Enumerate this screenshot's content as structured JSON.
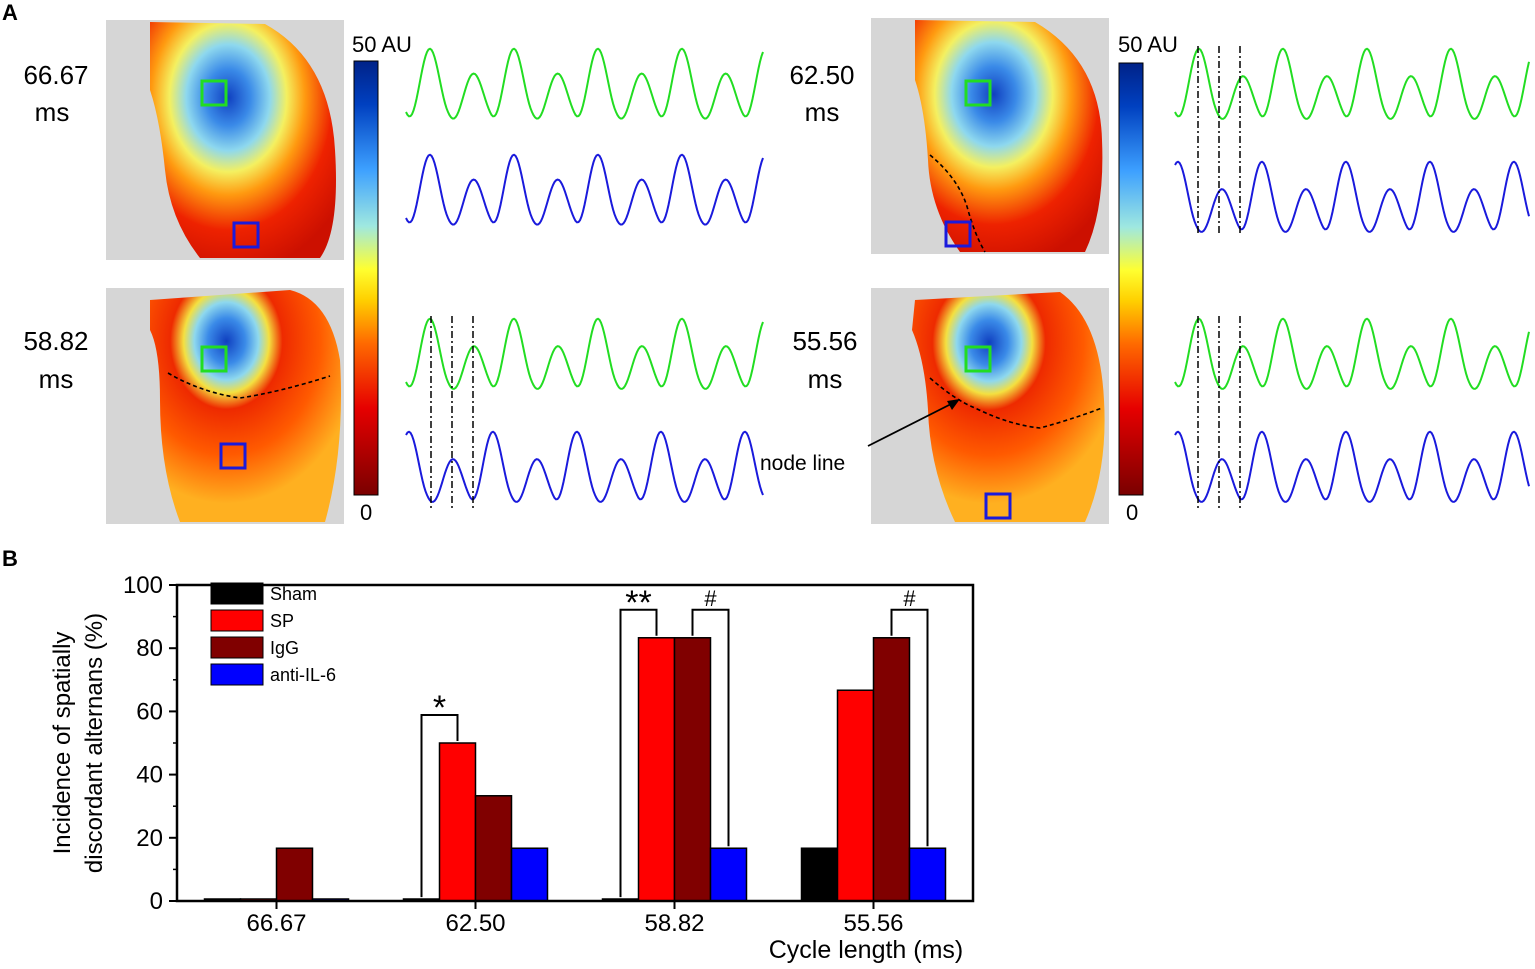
{
  "panel_a": {
    "label": "A",
    "colorbar": {
      "max_label": "50 AU",
      "min_label": "0"
    },
    "maps": [
      {
        "cycle_label": "66.67",
        "unit": "ms"
      },
      {
        "cycle_label": "58.82",
        "unit": "ms"
      },
      {
        "cycle_label": "62.50",
        "unit": "ms"
      },
      {
        "cycle_label": "55.56",
        "unit": "ms"
      }
    ],
    "annotation": "node line",
    "colors": {
      "green_trace": "#22dd22",
      "blue_trace": "#1a1adc",
      "colormap": [
        "#7a0000",
        "#e60000",
        "#ff6a00",
        "#ffd000",
        "#ffff30",
        "#9fe8e0",
        "#3da0ff",
        "#0040c0",
        "#002288"
      ]
    }
  },
  "chart_data": {
    "panel_label": "B",
    "type": "bar",
    "categories": [
      "66.67",
      "62.50",
      "58.82",
      "55.56"
    ],
    "series": [
      {
        "name": "Sham",
        "color": "#000000",
        "values": [
          0,
          0,
          0,
          16.7
        ]
      },
      {
        "name": "SP",
        "color": "#ff0000",
        "values": [
          0,
          50,
          83.3,
          66.7
        ]
      },
      {
        "name": "IgG",
        "color": "#800000",
        "values": [
          16.7,
          33.3,
          83.3,
          83.3
        ]
      },
      {
        "name": "anti-IL-6",
        "color": "#0000ff",
        "values": [
          0,
          16.7,
          16.7,
          16.7
        ]
      }
    ],
    "ylim": [
      0,
      100
    ],
    "yticks": [
      "0",
      "20",
      "40",
      "60",
      "80",
      "100"
    ],
    "ylabel_line1": "Incidence of spatially",
    "ylabel_line2": "discordant alternans (%)",
    "xlabel": "Cycle length (ms)",
    "legend_placement": "top-left",
    "significance": [
      {
        "category": "62.50",
        "from": "Sham",
        "to": "SP",
        "label": "*"
      },
      {
        "category": "58.82",
        "from": "Sham",
        "to": "SP",
        "label": "**"
      },
      {
        "category": "58.82",
        "from": "IgG",
        "to": "anti-IL-6",
        "label": "#"
      },
      {
        "category": "55.56",
        "from": "IgG",
        "to": "anti-IL-6",
        "label": "#"
      }
    ]
  }
}
